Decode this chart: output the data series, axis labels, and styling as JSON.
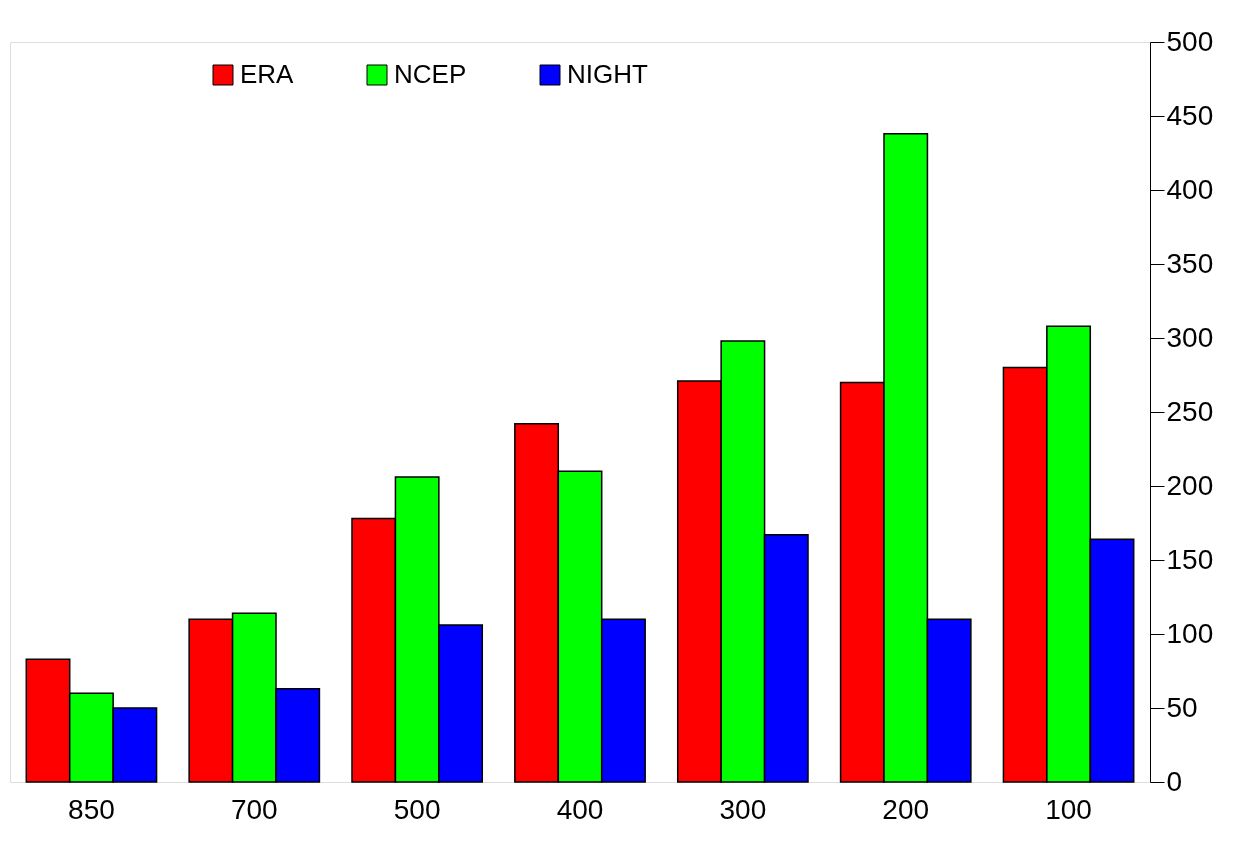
{
  "chart_data": {
    "type": "bar",
    "categories": [
      "850",
      "700",
      "500",
      "400",
      "300",
      "200",
      "100"
    ],
    "series": [
      {
        "name": "ERA",
        "color": "#ff0000",
        "values": [
          83,
          110,
          178,
          242,
          271,
          270,
          280
        ]
      },
      {
        "name": "NCEP",
        "color": "#00ff00",
        "values": [
          60,
          114,
          206,
          210,
          298,
          438,
          308
        ]
      },
      {
        "name": "NIGHT",
        "color": "#0000ff",
        "values": [
          50,
          63,
          106,
          110,
          167,
          110,
          164
        ]
      }
    ],
    "ylim": [
      0,
      500
    ],
    "yticks": [
      0,
      50,
      100,
      150,
      200,
      250,
      300,
      350,
      400,
      450,
      500
    ],
    "grid": false,
    "legend": "top left"
  }
}
